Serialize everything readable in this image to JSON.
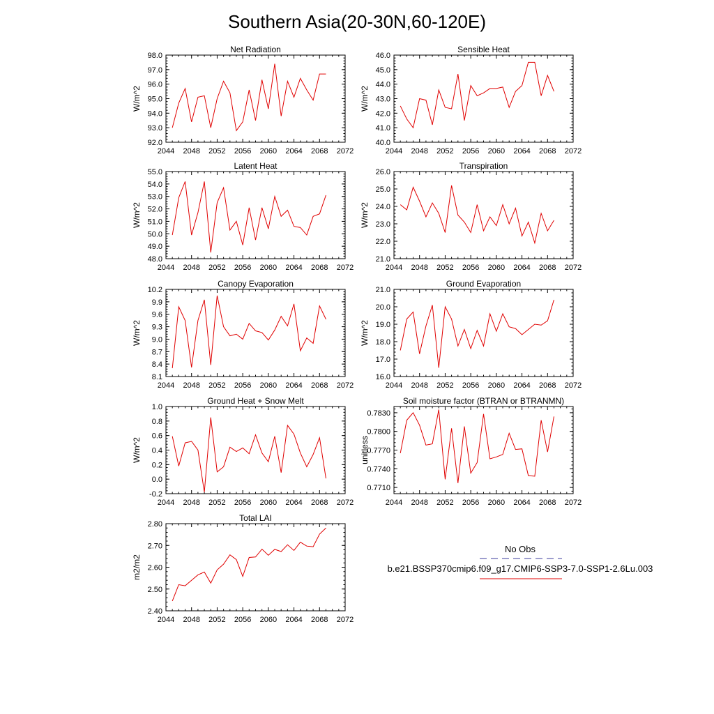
{
  "figure_title": "Southern Asia(20-30N,60-120E)",
  "legend": {
    "obs_label": "No Obs",
    "obs_color": "#3b3b9e",
    "model_label": "b.e21.BSSP370cmip6.f09_g17.CMIP6-SSP3-7.0-SSP1-2.6Lu.003",
    "model_color": "#e00000"
  },
  "chart_data": [
    {
      "type": "line",
      "title": "Net Radiation",
      "ylabel": "W/m^2",
      "xlim": [
        2044,
        2072
      ],
      "xticks": [
        "2044",
        "2048",
        "2052",
        "2056",
        "2060",
        "2064",
        "2068",
        "2072"
      ],
      "ylim": [
        92.0,
        98.0
      ],
      "yticks": [
        "92.0",
        "93.0",
        "94.0",
        "95.0",
        "96.0",
        "97.0",
        "98.0"
      ],
      "x": [
        2045,
        2046,
        2047,
        2048,
        2049,
        2050,
        2051,
        2052,
        2053,
        2054,
        2055,
        2056,
        2057,
        2058,
        2059,
        2060,
        2061,
        2062,
        2063,
        2064,
        2065,
        2066,
        2067,
        2068,
        2069
      ],
      "series": [
        {
          "color": "#e00000",
          "values": [
            93.0,
            94.7,
            95.7,
            93.4,
            95.1,
            95.2,
            93.0,
            95.0,
            96.2,
            95.4,
            92.8,
            93.4,
            95.6,
            93.5,
            96.3,
            94.3,
            97.4,
            93.8,
            96.2,
            95.1,
            96.4,
            95.6,
            94.9,
            96.7,
            96.7
          ]
        }
      ]
    },
    {
      "type": "line",
      "title": "Sensible Heat",
      "ylabel": "W/m^2",
      "xlim": [
        2044,
        2072
      ],
      "xticks": [
        "2044",
        "2048",
        "2052",
        "2056",
        "2060",
        "2064",
        "2068",
        "2072"
      ],
      "ylim": [
        40.0,
        46.0
      ],
      "yticks": [
        "40.0",
        "41.0",
        "42.0",
        "43.0",
        "44.0",
        "45.0",
        "46.0"
      ],
      "x": [
        2045,
        2046,
        2047,
        2048,
        2049,
        2050,
        2051,
        2052,
        2053,
        2054,
        2055,
        2056,
        2057,
        2058,
        2059,
        2060,
        2061,
        2062,
        2063,
        2064,
        2065,
        2066,
        2067,
        2068,
        2069
      ],
      "series": [
        {
          "color": "#e00000",
          "values": [
            42.5,
            41.6,
            41.0,
            43.0,
            42.9,
            41.2,
            43.6,
            42.4,
            42.3,
            44.7,
            41.5,
            43.9,
            43.2,
            43.4,
            43.7,
            43.7,
            43.8,
            42.4,
            43.5,
            43.9,
            45.5,
            45.5,
            43.2,
            44.6,
            43.5
          ]
        }
      ]
    },
    {
      "type": "line",
      "title": "Latent Heat",
      "ylabel": "W/m^2",
      "xlim": [
        2044,
        2072
      ],
      "xticks": [
        "2044",
        "2048",
        "2052",
        "2056",
        "2060",
        "2064",
        "2068",
        "2072"
      ],
      "ylim": [
        48.0,
        55.0
      ],
      "yticks": [
        "48.0",
        "49.0",
        "50.0",
        "51.0",
        "52.0",
        "53.0",
        "54.0",
        "55.0"
      ],
      "x": [
        2045,
        2046,
        2047,
        2048,
        2049,
        2050,
        2051,
        2052,
        2053,
        2054,
        2055,
        2056,
        2057,
        2058,
        2059,
        2060,
        2061,
        2062,
        2063,
        2064,
        2065,
        2066,
        2067,
        2068,
        2069
      ],
      "series": [
        {
          "color": "#e00000",
          "values": [
            49.9,
            52.9,
            54.2,
            49.9,
            51.7,
            54.2,
            48.5,
            52.5,
            53.7,
            50.3,
            51.0,
            49.1,
            52.1,
            49.5,
            52.1,
            50.4,
            53.0,
            51.4,
            51.9,
            50.6,
            50.5,
            49.9,
            51.4,
            51.6,
            53.1
          ]
        }
      ]
    },
    {
      "type": "line",
      "title": "Transpiration",
      "ylabel": "W/m^2",
      "xlim": [
        2044,
        2072
      ],
      "xticks": [
        "2044",
        "2048",
        "2052",
        "2056",
        "2060",
        "2064",
        "2068",
        "2072"
      ],
      "ylim": [
        21.0,
        26.0
      ],
      "yticks": [
        "21.0",
        "22.0",
        "23.0",
        "24.0",
        "25.0",
        "26.0"
      ],
      "x": [
        2045,
        2046,
        2047,
        2048,
        2049,
        2050,
        2051,
        2052,
        2053,
        2054,
        2055,
        2056,
        2057,
        2058,
        2059,
        2060,
        2061,
        2062,
        2063,
        2064,
        2065,
        2066,
        2067,
        2068,
        2069
      ],
      "series": [
        {
          "color": "#e00000",
          "values": [
            24.1,
            23.8,
            25.1,
            24.3,
            23.4,
            24.2,
            23.6,
            22.5,
            25.2,
            23.5,
            23.1,
            22.5,
            24.1,
            22.6,
            23.4,
            22.9,
            24.1,
            23.0,
            23.9,
            22.3,
            23.1,
            21.9,
            23.6,
            22.6,
            23.2
          ]
        }
      ]
    },
    {
      "type": "line",
      "title": "Canopy Evaporation",
      "ylabel": "W/m^2",
      "xlim": [
        2044,
        2072
      ],
      "xticks": [
        "2044",
        "2048",
        "2052",
        "2056",
        "2060",
        "2064",
        "2068",
        "2072"
      ],
      "ylim": [
        8.1,
        10.2
      ],
      "yticks": [
        "8.1",
        "8.4",
        "8.7",
        "9.0",
        "9.3",
        "9.6",
        "9.9",
        "10.2"
      ],
      "x": [
        2045,
        2046,
        2047,
        2048,
        2049,
        2050,
        2051,
        2052,
        2053,
        2054,
        2055,
        2056,
        2057,
        2058,
        2059,
        2060,
        2061,
        2062,
        2063,
        2064,
        2065,
        2066,
        2067,
        2068,
        2069
      ],
      "series": [
        {
          "color": "#e00000",
          "values": [
            8.3,
            9.78,
            9.45,
            8.32,
            9.45,
            9.95,
            8.38,
            10.05,
            9.3,
            9.08,
            9.12,
            9.0,
            9.38,
            9.2,
            9.16,
            8.98,
            9.22,
            9.55,
            9.32,
            9.85,
            8.72,
            9.03,
            8.9,
            9.8,
            9.48
          ]
        }
      ]
    },
    {
      "type": "line",
      "title": "Ground Evaporation",
      "ylabel": "W/m^2",
      "xlim": [
        2044,
        2072
      ],
      "xticks": [
        "2044",
        "2048",
        "2052",
        "2056",
        "2060",
        "2064",
        "2068",
        "2072"
      ],
      "ylim": [
        16.0,
        21.0
      ],
      "yticks": [
        "16.0",
        "17.0",
        "18.0",
        "19.0",
        "20.0",
        "21.0"
      ],
      "x": [
        2045,
        2046,
        2047,
        2048,
        2049,
        2050,
        2051,
        2052,
        2053,
        2054,
        2055,
        2056,
        2057,
        2058,
        2059,
        2060,
        2061,
        2062,
        2063,
        2064,
        2065,
        2066,
        2067,
        2068,
        2069
      ],
      "series": [
        {
          "color": "#e00000",
          "values": [
            17.5,
            19.3,
            19.7,
            17.3,
            18.9,
            20.1,
            16.5,
            20.0,
            19.3,
            17.75,
            18.7,
            17.6,
            18.65,
            17.75,
            19.6,
            18.6,
            19.6,
            18.85,
            18.75,
            18.4,
            18.7,
            19.0,
            18.95,
            19.2,
            20.4
          ]
        }
      ]
    },
    {
      "type": "line",
      "title": "Ground Heat + Snow Melt",
      "ylabel": "W/m^2",
      "xlim": [
        2044,
        2072
      ],
      "xticks": [
        "2044",
        "2048",
        "2052",
        "2056",
        "2060",
        "2064",
        "2068",
        "2072"
      ],
      "ylim": [
        -0.2,
        1.0
      ],
      "yticks": [
        "-0.2",
        "0.0",
        "0.2",
        "0.4",
        "0.6",
        "0.8",
        "1.0"
      ],
      "x": [
        2045,
        2046,
        2047,
        2048,
        2049,
        2050,
        2051,
        2052,
        2053,
        2054,
        2055,
        2056,
        2057,
        2058,
        2059,
        2060,
        2061,
        2062,
        2063,
        2064,
        2065,
        2066,
        2067,
        2068,
        2069
      ],
      "series": [
        {
          "color": "#e00000",
          "values": [
            0.59,
            0.18,
            0.5,
            0.52,
            0.4,
            -0.18,
            0.85,
            0.1,
            0.17,
            0.44,
            0.38,
            0.43,
            0.35,
            0.61,
            0.36,
            0.24,
            0.59,
            0.09,
            0.74,
            0.62,
            0.36,
            0.17,
            0.34,
            0.57,
            0.01
          ]
        }
      ]
    },
    {
      "type": "line",
      "title": "Soil moisture factor (BTRAN or BTRANMN)",
      "ylabel": "unitless",
      "xlim": [
        2044,
        2072
      ],
      "xticks": [
        "2044",
        "2048",
        "2052",
        "2056",
        "2060",
        "2064",
        "2068",
        "2072"
      ],
      "ylim": [
        0.77,
        0.784
      ],
      "yticks": [
        "0.7710",
        "0.7740",
        "0.7770",
        "0.7800",
        "0.7830"
      ],
      "x": [
        2045,
        2046,
        2047,
        2048,
        2049,
        2050,
        2051,
        2052,
        2053,
        2054,
        2055,
        2056,
        2057,
        2058,
        2059,
        2060,
        2061,
        2062,
        2063,
        2064,
        2065,
        2066,
        2067,
        2068,
        2069
      ],
      "series": [
        {
          "color": "#e00000",
          "values": [
            0.7765,
            0.7818,
            0.783,
            0.781,
            0.7778,
            0.778,
            0.7835,
            0.7723,
            0.7805,
            0.7717,
            0.7808,
            0.7733,
            0.775,
            0.7828,
            0.7756,
            0.7759,
            0.7763,
            0.7797,
            0.7771,
            0.7772,
            0.7729,
            0.7728,
            0.7818,
            0.7767,
            0.7824
          ]
        }
      ]
    },
    {
      "type": "line",
      "title": "Total LAI",
      "ylabel": "m2/m2",
      "xlim": [
        2044,
        2072
      ],
      "xticks": [
        "2044",
        "2048",
        "2052",
        "2056",
        "2060",
        "2064",
        "2068",
        "2072"
      ],
      "ylim": [
        2.4,
        2.8
      ],
      "yticks": [
        "2.40",
        "2.50",
        "2.60",
        "2.70",
        "2.80"
      ],
      "x": [
        2045,
        2046,
        2047,
        2048,
        2049,
        2050,
        2051,
        2052,
        2053,
        2054,
        2055,
        2056,
        2057,
        2058,
        2059,
        2060,
        2061,
        2062,
        2063,
        2064,
        2065,
        2066,
        2067,
        2068,
        2069
      ],
      "series": [
        {
          "color": "#e00000",
          "values": [
            2.445,
            2.52,
            2.515,
            2.54,
            2.565,
            2.578,
            2.527,
            2.588,
            2.614,
            2.657,
            2.635,
            2.558,
            2.645,
            2.647,
            2.683,
            2.655,
            2.682,
            2.672,
            2.703,
            2.677,
            2.715,
            2.697,
            2.694,
            2.752,
            2.78
          ]
        }
      ]
    }
  ]
}
